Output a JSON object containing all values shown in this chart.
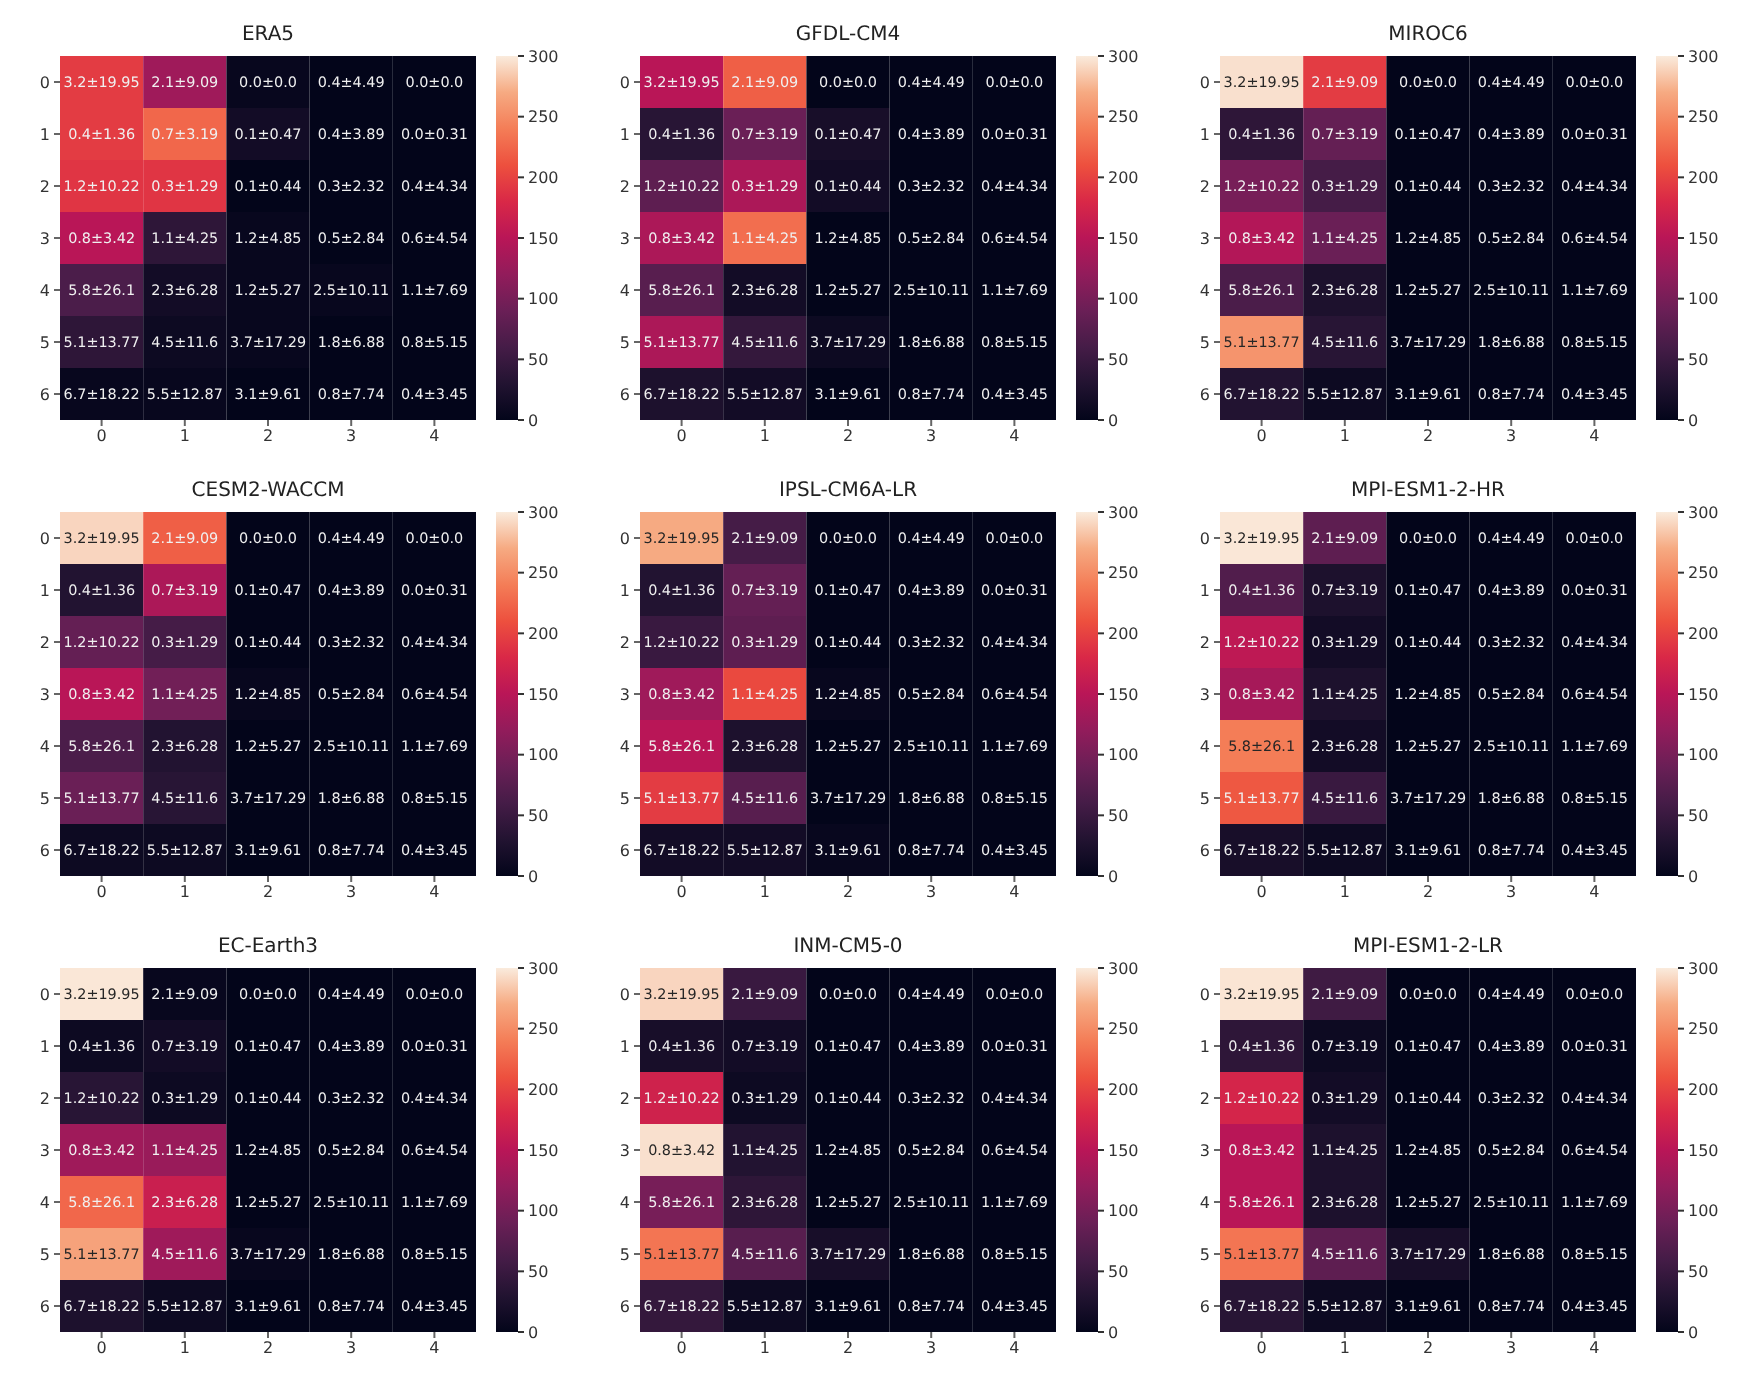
{
  "chart_data": [
    {
      "type": "heatmap",
      "title": "ERA5",
      "categories": [
        "0",
        "1",
        "2",
        "3",
        "4"
      ],
      "y_categories": [
        "0",
        "1",
        "2",
        "3",
        "4",
        "5",
        "6"
      ],
      "clim": [
        0,
        300
      ],
      "cticks": [
        0,
        50,
        100,
        150,
        200,
        250,
        300
      ],
      "cells": [
        [
          195,
          130,
          5,
          0,
          0
        ],
        [
          195,
          225,
          15,
          0,
          0
        ],
        [
          190,
          190,
          0,
          0,
          0
        ],
        [
          150,
          40,
          5,
          0,
          0
        ],
        [
          65,
          15,
          5,
          5,
          0
        ],
        [
          40,
          10,
          5,
          0,
          0
        ],
        [
          5,
          5,
          0,
          0,
          0
        ]
      ],
      "cell_labels": [
        [
          "3.2±19.95",
          "2.1±9.09",
          "0.0±0.0",
          "0.4±4.49",
          "0.0±0.0"
        ],
        [
          "0.4±1.36",
          "0.7±3.19",
          "0.1±0.47",
          "0.4±3.89",
          "0.0±0.31"
        ],
        [
          "1.2±10.22",
          "0.3±1.29",
          "0.1±0.44",
          "0.3±2.32",
          "0.4±4.34"
        ],
        [
          "0.8±3.42",
          "1.1±4.25",
          "1.2±4.85",
          "0.5±2.84",
          "0.6±4.54"
        ],
        [
          "5.8±26.1",
          "2.3±6.28",
          "1.2±5.27",
          "2.5±10.11",
          "1.1±7.69"
        ],
        [
          "5.1±13.77",
          "4.5±11.6",
          "3.7±17.29",
          "1.8±6.88",
          "0.8±5.15"
        ],
        [
          "6.7±18.22",
          "5.5±12.87",
          "3.1±9.61",
          "0.8±7.74",
          "0.4±3.45"
        ]
      ]
    },
    {
      "type": "heatmap",
      "title": "GFDL-CM4",
      "categories": [
        "0",
        "1",
        "2",
        "3",
        "4"
      ],
      "y_categories": [
        "0",
        "1",
        "2",
        "3",
        "4",
        "5",
        "6"
      ],
      "clim": [
        0,
        300
      ],
      "cticks": [
        0,
        50,
        100,
        150,
        200,
        250,
        300
      ],
      "cells": [
        [
          150,
          220,
          0,
          0,
          0
        ],
        [
          35,
          90,
          20,
          0,
          0
        ],
        [
          80,
          140,
          15,
          0,
          0
        ],
        [
          140,
          230,
          0,
          0,
          0
        ],
        [
          75,
          15,
          0,
          0,
          0
        ],
        [
          140,
          45,
          10,
          0,
          0
        ],
        [
          25,
          15,
          0,
          0,
          0
        ]
      ],
      "cell_labels": [
        [
          "3.2±19.95",
          "2.1±9.09",
          "0.0±0.0",
          "0.4±4.49",
          "0.0±0.0"
        ],
        [
          "0.4±1.36",
          "0.7±3.19",
          "0.1±0.47",
          "0.4±3.89",
          "0.0±0.31"
        ],
        [
          "1.2±10.22",
          "0.3±1.29",
          "0.1±0.44",
          "0.3±2.32",
          "0.4±4.34"
        ],
        [
          "0.8±3.42",
          "1.1±4.25",
          "1.2±4.85",
          "0.5±2.84",
          "0.6±4.54"
        ],
        [
          "5.8±26.1",
          "2.3±6.28",
          "1.2±5.27",
          "2.5±10.11",
          "1.1±7.69"
        ],
        [
          "5.1±13.77",
          "4.5±11.6",
          "3.7±17.29",
          "1.8±6.88",
          "0.8±5.15"
        ],
        [
          "6.7±18.22",
          "5.5±12.87",
          "3.1±9.61",
          "0.8±7.74",
          "0.4±3.45"
        ]
      ]
    },
    {
      "type": "heatmap",
      "title": "MIROC6",
      "categories": [
        "0",
        "1",
        "2",
        "3",
        "4"
      ],
      "y_categories": [
        "0",
        "1",
        "2",
        "3",
        "4",
        "5",
        "6"
      ],
      "clim": [
        0,
        300
      ],
      "cticks": [
        0,
        50,
        100,
        150,
        200,
        250,
        300
      ],
      "cells": [
        [
          295,
          195,
          0,
          0,
          0
        ],
        [
          40,
          85,
          0,
          0,
          0
        ],
        [
          100,
          60,
          0,
          0,
          0
        ],
        [
          145,
          90,
          0,
          0,
          0
        ],
        [
          65,
          25,
          0,
          0,
          0
        ],
        [
          255,
          35,
          0,
          0,
          0
        ],
        [
          30,
          10,
          0,
          0,
          0
        ]
      ],
      "cell_labels": [
        [
          "3.2±19.95",
          "2.1±9.09",
          "0.0±0.0",
          "0.4±4.49",
          "0.0±0.0"
        ],
        [
          "0.4±1.36",
          "0.7±3.19",
          "0.1±0.47",
          "0.4±3.89",
          "0.0±0.31"
        ],
        [
          "1.2±10.22",
          "0.3±1.29",
          "0.1±0.44",
          "0.3±2.32",
          "0.4±4.34"
        ],
        [
          "0.8±3.42",
          "1.1±4.25",
          "1.2±4.85",
          "0.5±2.84",
          "0.6±4.54"
        ],
        [
          "5.8±26.1",
          "2.3±6.28",
          "1.2±5.27",
          "2.5±10.11",
          "1.1±7.69"
        ],
        [
          "5.1±13.77",
          "4.5±11.6",
          "3.7±17.29",
          "1.8±6.88",
          "0.8±5.15"
        ],
        [
          "6.7±18.22",
          "5.5±12.87",
          "3.1±9.61",
          "0.8±7.74",
          "0.4±3.45"
        ]
      ]
    },
    {
      "type": "heatmap",
      "title": "CESM2-WACCM",
      "categories": [
        "0",
        "1",
        "2",
        "3",
        "4"
      ],
      "y_categories": [
        "0",
        "1",
        "2",
        "3",
        "4",
        "5",
        "6"
      ],
      "clim": [
        0,
        300
      ],
      "cticks": [
        0,
        50,
        100,
        150,
        200,
        250,
        300
      ],
      "cells": [
        [
          290,
          220,
          0,
          0,
          0
        ],
        [
          30,
          140,
          0,
          0,
          0
        ],
        [
          85,
          60,
          0,
          0,
          0
        ],
        [
          150,
          95,
          5,
          0,
          0
        ],
        [
          65,
          30,
          0,
          0,
          0
        ],
        [
          90,
          35,
          0,
          0,
          0
        ],
        [
          10,
          10,
          0,
          0,
          0
        ]
      ],
      "cell_labels": [
        [
          "3.2±19.95",
          "2.1±9.09",
          "0.0±0.0",
          "0.4±4.49",
          "0.0±0.0"
        ],
        [
          "0.4±1.36",
          "0.7±3.19",
          "0.1±0.47",
          "0.4±3.89",
          "0.0±0.31"
        ],
        [
          "1.2±10.22",
          "0.3±1.29",
          "0.1±0.44",
          "0.3±2.32",
          "0.4±4.34"
        ],
        [
          "0.8±3.42",
          "1.1±4.25",
          "1.2±4.85",
          "0.5±2.84",
          "0.6±4.54"
        ],
        [
          "5.8±26.1",
          "2.3±6.28",
          "1.2±5.27",
          "2.5±10.11",
          "1.1±7.69"
        ],
        [
          "5.1±13.77",
          "4.5±11.6",
          "3.7±17.29",
          "1.8±6.88",
          "0.8±5.15"
        ],
        [
          "6.7±18.22",
          "5.5±12.87",
          "3.1±9.61",
          "0.8±7.74",
          "0.4±3.45"
        ]
      ]
    },
    {
      "type": "heatmap",
      "title": "IPSL-CM6A-LR",
      "categories": [
        "0",
        "1",
        "2",
        "3",
        "4"
      ],
      "y_categories": [
        "0",
        "1",
        "2",
        "3",
        "4",
        "5",
        "6"
      ],
      "clim": [
        0,
        300
      ],
      "cticks": [
        0,
        50,
        100,
        150,
        200,
        250,
        300
      ],
      "cells": [
        [
          270,
          60,
          0,
          0,
          0
        ],
        [
          30,
          85,
          0,
          0,
          0
        ],
        [
          50,
          80,
          0,
          0,
          0
        ],
        [
          130,
          205,
          5,
          0,
          0
        ],
        [
          150,
          25,
          0,
          0,
          0
        ],
        [
          195,
          75,
          0,
          0,
          0
        ],
        [
          15,
          15,
          5,
          0,
          0
        ]
      ],
      "cell_labels": [
        [
          "3.2±19.95",
          "2.1±9.09",
          "0.0±0.0",
          "0.4±4.49",
          "0.0±0.0"
        ],
        [
          "0.4±1.36",
          "0.7±3.19",
          "0.1±0.47",
          "0.4±3.89",
          "0.0±0.31"
        ],
        [
          "1.2±10.22",
          "0.3±1.29",
          "0.1±0.44",
          "0.3±2.32",
          "0.4±4.34"
        ],
        [
          "0.8±3.42",
          "1.1±4.25",
          "1.2±4.85",
          "0.5±2.84",
          "0.6±4.54"
        ],
        [
          "5.8±26.1",
          "2.3±6.28",
          "1.2±5.27",
          "2.5±10.11",
          "1.1±7.69"
        ],
        [
          "5.1±13.77",
          "4.5±11.6",
          "3.7±17.29",
          "1.8±6.88",
          "0.8±5.15"
        ],
        [
          "6.7±18.22",
          "5.5±12.87",
          "3.1±9.61",
          "0.8±7.74",
          "0.4±3.45"
        ]
      ]
    },
    {
      "type": "heatmap",
      "title": "MPI-ESM1-2-HR",
      "categories": [
        "0",
        "1",
        "2",
        "3",
        "4"
      ],
      "y_categories": [
        "0",
        "1",
        "2",
        "3",
        "4",
        "5",
        "6"
      ],
      "clim": [
        0,
        300
      ],
      "cticks": [
        0,
        50,
        100,
        150,
        200,
        250,
        300
      ],
      "cells": [
        [
          298,
          80,
          0,
          0,
          0
        ],
        [
          70,
          25,
          0,
          0,
          0
        ],
        [
          155,
          15,
          0,
          0,
          0
        ],
        [
          135,
          25,
          0,
          0,
          0
        ],
        [
          240,
          15,
          0,
          0,
          0
        ],
        [
          215,
          50,
          0,
          0,
          0
        ],
        [
          20,
          10,
          0,
          0,
          0
        ]
      ],
      "cell_labels": [
        [
          "3.2±19.95",
          "2.1±9.09",
          "0.0±0.0",
          "0.4±4.49",
          "0.0±0.0"
        ],
        [
          "0.4±1.36",
          "0.7±3.19",
          "0.1±0.47",
          "0.4±3.89",
          "0.0±0.31"
        ],
        [
          "1.2±10.22",
          "0.3±1.29",
          "0.1±0.44",
          "0.3±2.32",
          "0.4±4.34"
        ],
        [
          "0.8±3.42",
          "1.1±4.25",
          "1.2±4.85",
          "0.5±2.84",
          "0.6±4.54"
        ],
        [
          "5.8±26.1",
          "2.3±6.28",
          "1.2±5.27",
          "2.5±10.11",
          "1.1±7.69"
        ],
        [
          "5.1±13.77",
          "4.5±11.6",
          "3.7±17.29",
          "1.8±6.88",
          "0.8±5.15"
        ],
        [
          "6.7±18.22",
          "5.5±12.87",
          "3.1±9.61",
          "0.8±7.74",
          "0.4±3.45"
        ]
      ]
    },
    {
      "type": "heatmap",
      "title": "EC-Earth3",
      "categories": [
        "0",
        "1",
        "2",
        "3",
        "4"
      ],
      "y_categories": [
        "0",
        "1",
        "2",
        "3",
        "4",
        "5",
        "6"
      ],
      "clim": [
        0,
        300
      ],
      "cticks": [
        0,
        50,
        100,
        150,
        200,
        250,
        300
      ],
      "cells": [
        [
          298,
          5,
          0,
          0,
          0
        ],
        [
          10,
          15,
          0,
          0,
          0
        ],
        [
          35,
          10,
          0,
          0,
          0
        ],
        [
          130,
          125,
          0,
          0,
          0
        ],
        [
          225,
          165,
          0,
          0,
          0
        ],
        [
          265,
          130,
          5,
          0,
          0
        ],
        [
          25,
          10,
          0,
          0,
          0
        ]
      ],
      "cell_labels": [
        [
          "3.2±19.95",
          "2.1±9.09",
          "0.0±0.0",
          "0.4±4.49",
          "0.0±0.0"
        ],
        [
          "0.4±1.36",
          "0.7±3.19",
          "0.1±0.47",
          "0.4±3.89",
          "0.0±0.31"
        ],
        [
          "1.2±10.22",
          "0.3±1.29",
          "0.1±0.44",
          "0.3±2.32",
          "0.4±4.34"
        ],
        [
          "0.8±3.42",
          "1.1±4.25",
          "1.2±4.85",
          "0.5±2.84",
          "0.6±4.54"
        ],
        [
          "5.8±26.1",
          "2.3±6.28",
          "1.2±5.27",
          "2.5±10.11",
          "1.1±7.69"
        ],
        [
          "5.1±13.77",
          "4.5±11.6",
          "3.7±17.29",
          "1.8±6.88",
          "0.8±5.15"
        ],
        [
          "6.7±18.22",
          "5.5±12.87",
          "3.1±9.61",
          "0.8±7.74",
          "0.4±3.45"
        ]
      ]
    },
    {
      "type": "heatmap",
      "title": "INM-CM5-0",
      "categories": [
        "0",
        "1",
        "2",
        "3",
        "4"
      ],
      "y_categories": [
        "0",
        "1",
        "2",
        "3",
        "4",
        "5",
        "6"
      ],
      "clim": [
        0,
        300
      ],
      "cticks": [
        0,
        50,
        100,
        150,
        200,
        250,
        300
      ],
      "cells": [
        [
          290,
          50,
          0,
          0,
          0
        ],
        [
          20,
          15,
          0,
          0,
          0
        ],
        [
          170,
          10,
          0,
          0,
          0
        ],
        [
          295,
          30,
          0,
          0,
          0
        ],
        [
          100,
          40,
          0,
          0,
          0
        ],
        [
          235,
          75,
          20,
          0,
          0
        ],
        [
          45,
          10,
          0,
          0,
          0
        ]
      ],
      "cell_labels": [
        [
          "3.2±19.95",
          "2.1±9.09",
          "0.0±0.0",
          "0.4±4.49",
          "0.0±0.0"
        ],
        [
          "0.4±1.36",
          "0.7±3.19",
          "0.1±0.47",
          "0.4±3.89",
          "0.0±0.31"
        ],
        [
          "1.2±10.22",
          "0.3±1.29",
          "0.1±0.44",
          "0.3±2.32",
          "0.4±4.34"
        ],
        [
          "0.8±3.42",
          "1.1±4.25",
          "1.2±4.85",
          "0.5±2.84",
          "0.6±4.54"
        ],
        [
          "5.8±26.1",
          "2.3±6.28",
          "1.2±5.27",
          "2.5±10.11",
          "1.1±7.69"
        ],
        [
          "5.1±13.77",
          "4.5±11.6",
          "3.7±17.29",
          "1.8±6.88",
          "0.8±5.15"
        ],
        [
          "6.7±18.22",
          "5.5±12.87",
          "3.1±9.61",
          "0.8±7.74",
          "0.4±3.45"
        ]
      ]
    },
    {
      "type": "heatmap",
      "title": "MPI-ESM1-2-LR",
      "categories": [
        "0",
        "1",
        "2",
        "3",
        "4"
      ],
      "y_categories": [
        "0",
        "1",
        "2",
        "3",
        "4",
        "5",
        "6"
      ],
      "clim": [
        0,
        300
      ],
      "cticks": [
        0,
        50,
        100,
        150,
        200,
        250,
        300
      ],
      "cells": [
        [
          297,
          55,
          0,
          0,
          0
        ],
        [
          40,
          10,
          0,
          0,
          0
        ],
        [
          175,
          15,
          0,
          0,
          0
        ],
        [
          150,
          25,
          0,
          0,
          0
        ],
        [
          150,
          25,
          0,
          0,
          0
        ],
        [
          235,
          80,
          20,
          0,
          0
        ],
        [
          35,
          10,
          0,
          0,
          0
        ]
      ],
      "cell_labels": [
        [
          "3.2±19.95",
          "2.1±9.09",
          "0.0±0.0",
          "0.4±4.49",
          "0.0±0.0"
        ],
        [
          "0.4±1.36",
          "0.7±3.19",
          "0.1±0.47",
          "0.4±3.89",
          "0.0±0.31"
        ],
        [
          "1.2±10.22",
          "0.3±1.29",
          "0.1±0.44",
          "0.3±2.32",
          "0.4±4.34"
        ],
        [
          "0.8±3.42",
          "1.1±4.25",
          "1.2±4.85",
          "0.5±2.84",
          "0.6±4.54"
        ],
        [
          "5.8±26.1",
          "2.3±6.28",
          "1.2±5.27",
          "2.5±10.11",
          "1.1±7.69"
        ],
        [
          "5.1±13.77",
          "4.5±11.6",
          "3.7±17.29",
          "1.8±6.88",
          "0.8±5.15"
        ],
        [
          "6.7±18.22",
          "5.5±12.87",
          "3.1±9.61",
          "0.8±7.74",
          "0.4±3.45"
        ]
      ]
    }
  ]
}
